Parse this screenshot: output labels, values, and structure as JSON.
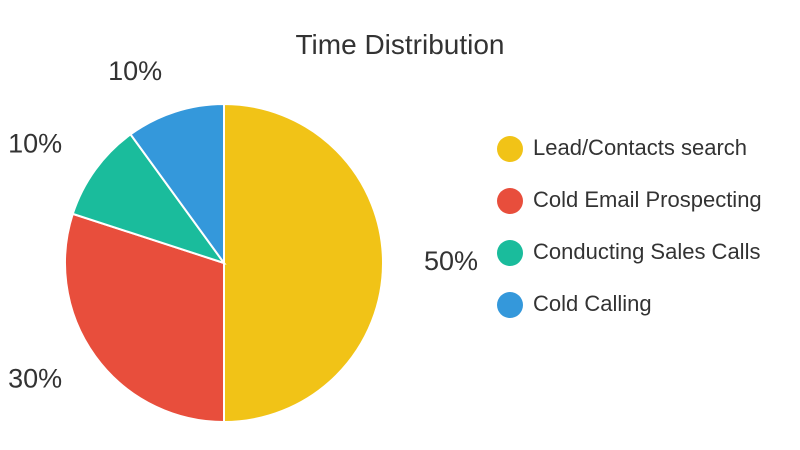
{
  "chart_data": {
    "type": "pie",
    "title": "Time Distribution",
    "labels": [
      "Lead/Contacts search",
      "Cold Email Prospecting",
      "Conducting Sales Calls",
      "Cold Calling"
    ],
    "values": [
      50,
      30,
      10,
      10
    ],
    "value_labels": [
      "50%",
      "30%",
      "10%",
      "10%"
    ],
    "colors": [
      "#F1C317",
      "#E84E3C",
      "#1ABC9C",
      "#3498DB"
    ],
    "legend_position": "right",
    "start_angle": "top",
    "direction": "clockwise"
  }
}
